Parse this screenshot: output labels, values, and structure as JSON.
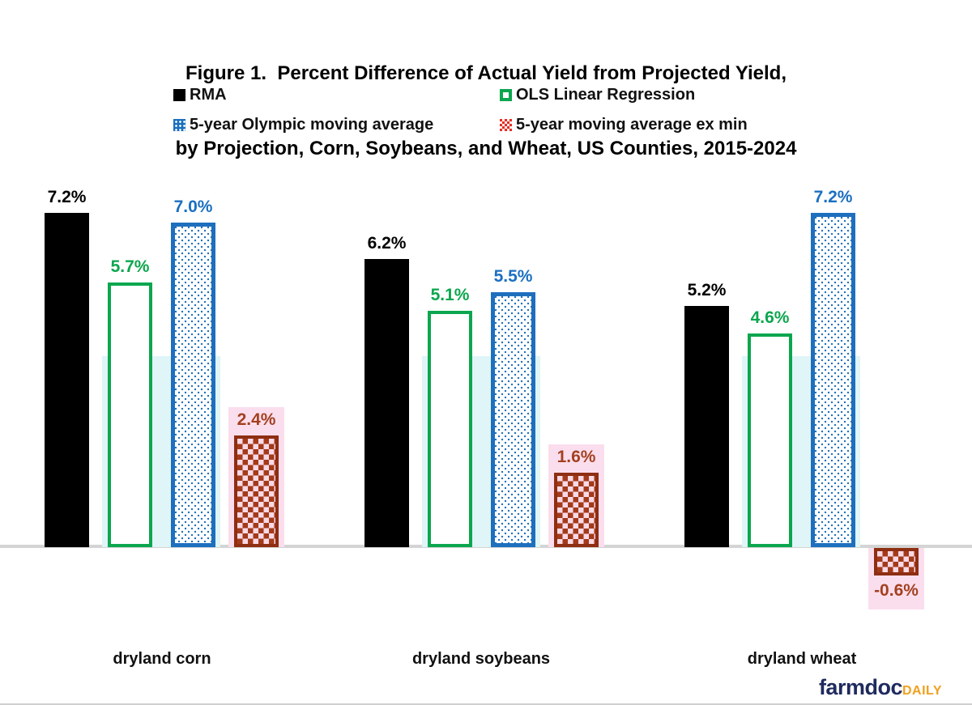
{
  "title": {
    "line1": "Figure 1.  Percent Difference of Actual Yield from Projected Yield,",
    "line2": "by Projection, Corn, Soybeans, and Wheat, US Counties, 2015-2024"
  },
  "legend": [
    {
      "label": "RMA",
      "color": "#000000",
      "pattern": "solid"
    },
    {
      "label": "OLS Linear Regression",
      "color": "#0ca64e",
      "pattern": "outline"
    },
    {
      "label": "5-year Olympic moving average",
      "color": "#1c70c0",
      "pattern": "dots"
    },
    {
      "label": "5-year moving average ex min",
      "color": "#e62e25",
      "pattern": "checker"
    }
  ],
  "chart_data": {
    "type": "bar",
    "title": "Figure 1.  Percent Difference of Actual Yield from Projected Yield, by Projection, Corn, Soybeans, and Wheat, US Counties, 2015-2024",
    "categories": [
      "dryland corn",
      "dryland soybeans",
      "dryland wheat"
    ],
    "series": [
      {
        "name": "RMA",
        "key": "rma",
        "color": "#000000",
        "style": "solid-black",
        "values": [
          7.2,
          6.2,
          5.2
        ]
      },
      {
        "name": "OLS Linear Regression",
        "key": "ols",
        "color": "#0ca64e",
        "style": "green-outline-white-fill",
        "values": [
          5.7,
          5.1,
          4.6
        ]
      },
      {
        "name": "5-year Olympic moving average",
        "key": "olympic",
        "color": "#1e6fbe",
        "style": "blue-dot-pattern",
        "values": [
          7.0,
          5.5,
          7.2
        ]
      },
      {
        "name": "5-year moving average ex min",
        "key": "exmin",
        "color": "#a33a1a",
        "style": "red-checker-pattern",
        "values": [
          2.4,
          1.6,
          -0.6
        ]
      }
    ],
    "value_label_format": "{value}%",
    "xlabel": "",
    "ylabel": "",
    "ylim": [
      -1.5,
      8
    ],
    "grid": false,
    "axis_line_color": "#d4d4d4",
    "highlight_band_cyan": "#dff5f7",
    "highlight_band_pink": "#fbdeee",
    "legend_position": "top"
  },
  "footer": {
    "logo_farmdoc": "farmdoc",
    "logo_daily": "DAILY"
  }
}
